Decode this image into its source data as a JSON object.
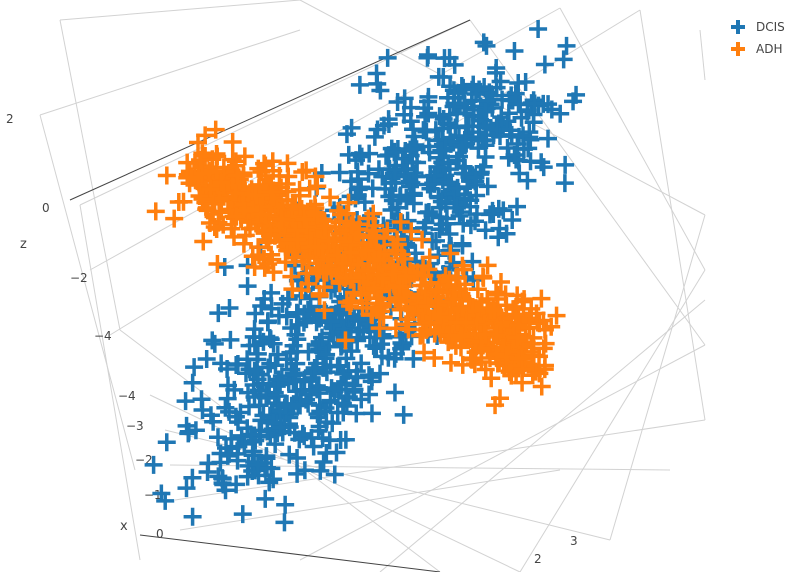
{
  "chart_data": {
    "type": "scatter",
    "dimensions": 3,
    "marker": "cross",
    "legend_position": "top-right",
    "axes": {
      "x": {
        "title": "x",
        "ticks": [
          "−4",
          "−3",
          "−2",
          "−1",
          "0"
        ]
      },
      "y": {
        "title": "",
        "ticks": [
          "2",
          "3"
        ]
      },
      "z": {
        "title": "z",
        "ticks": [
          "2",
          "0",
          "−2",
          "−4"
        ]
      }
    },
    "series": [
      {
        "name": "DCIS",
        "color": "#1f77b4"
      },
      {
        "name": "ADH",
        "color": "#ff7f0e"
      }
    ],
    "clusters_note_free": true
  }
}
